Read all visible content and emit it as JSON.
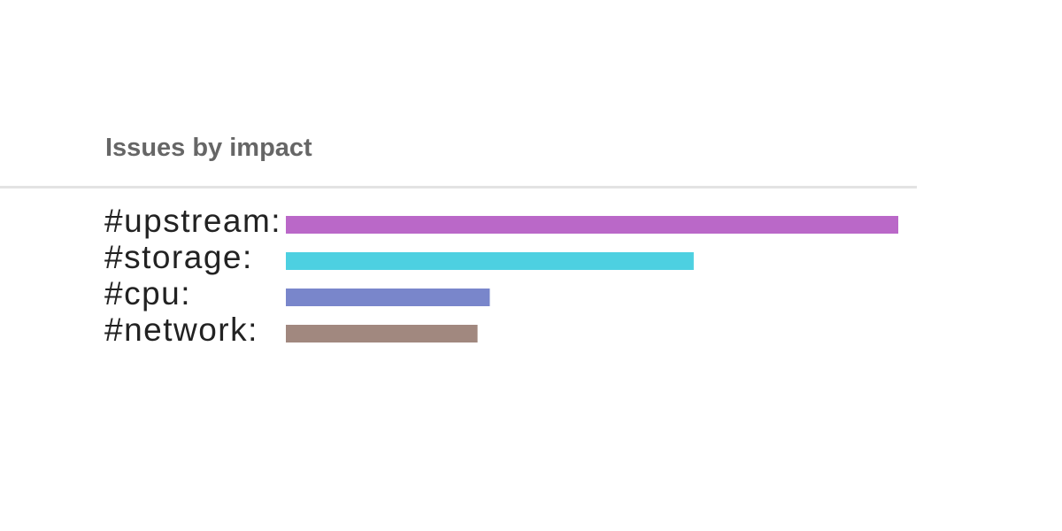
{
  "panel": {
    "title": "Issues by impact"
  },
  "chart_data": {
    "type": "bar",
    "orientation": "horizontal",
    "categories": [
      "#upstream",
      "#storage",
      "#cpu",
      "#network"
    ],
    "labels": [
      "#upstream:",
      "#storage:",
      "#cpu:",
      "#network:"
    ],
    "values": [
      100,
      66.6,
      33.3,
      31.3
    ],
    "colors": [
      "#ba68c8",
      "#4dd0e1",
      "#7986cb",
      "#a1887f"
    ],
    "xlim": [
      0,
      100
    ],
    "grid": false,
    "axes_visible": false,
    "legend": "none"
  }
}
